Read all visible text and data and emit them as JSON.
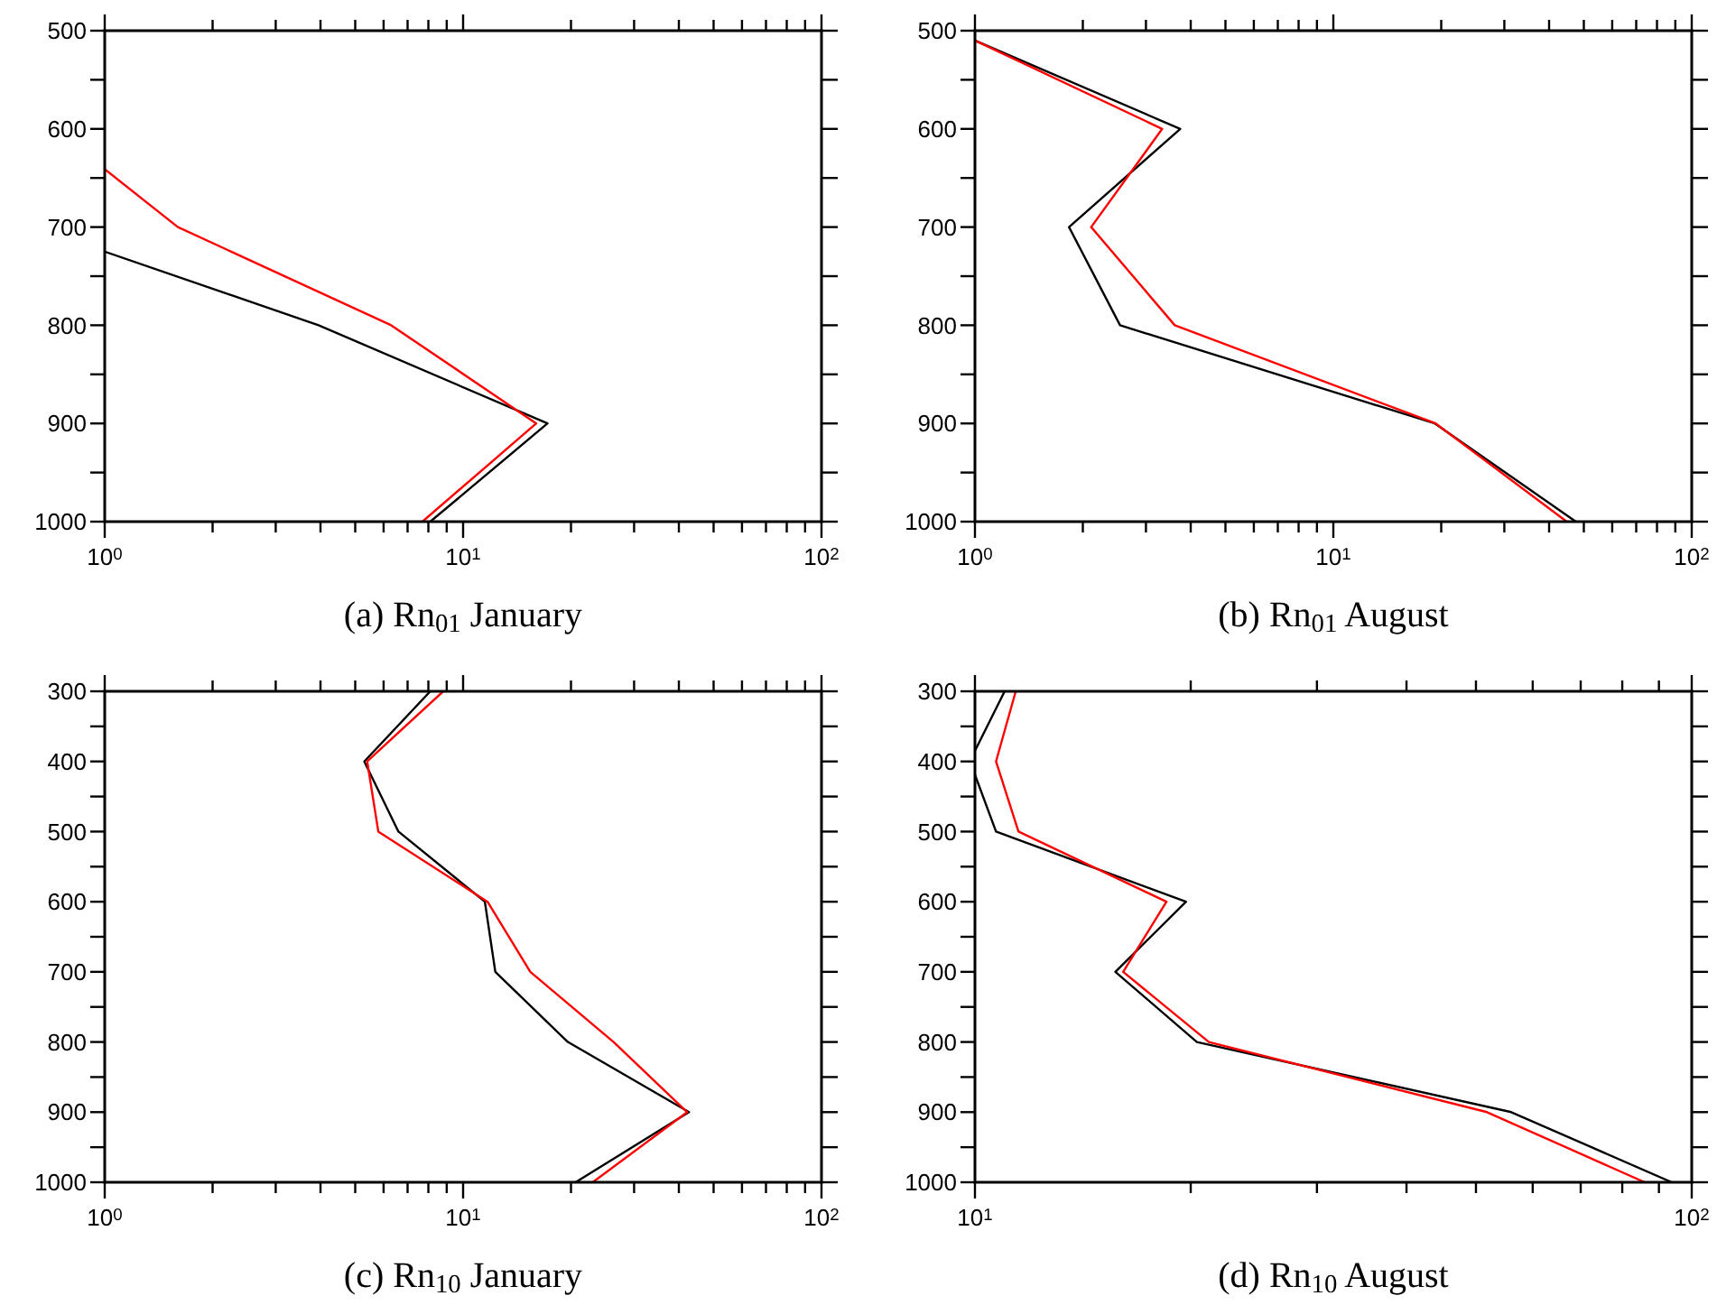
{
  "chart_data": [
    {
      "type": "line",
      "title": "(a) Rn$_{01}$ January",
      "log": "x",
      "grid": false,
      "xlim": [
        1,
        100
      ],
      "ylim": [
        1000,
        500
      ],
      "xticks": [
        {
          "value": 1,
          "label": "10$^{0}$"
        },
        {
          "value": 2,
          "label": null
        },
        {
          "value": 3,
          "label": null
        },
        {
          "value": 4,
          "label": null
        },
        {
          "value": 5,
          "label": null
        },
        {
          "value": 6,
          "label": null
        },
        {
          "value": 7,
          "label": null
        },
        {
          "value": 8,
          "label": null
        },
        {
          "value": 9,
          "label": null
        },
        {
          "value": 10,
          "label": "10$^{1}$"
        },
        {
          "value": 20,
          "label": null
        },
        {
          "value": 30,
          "label": null
        },
        {
          "value": 40,
          "label": null
        },
        {
          "value": 50,
          "label": null
        },
        {
          "value": 60,
          "label": null
        },
        {
          "value": 70,
          "label": null
        },
        {
          "value": 80,
          "label": null
        },
        {
          "value": 90,
          "label": null
        },
        {
          "value": 100,
          "label": "10$^{2}$"
        }
      ],
      "yticks": [
        500,
        {
          "value": 550,
          "label": null
        },
        600,
        {
          "value": 650,
          "label": null
        },
        700,
        {
          "value": 750,
          "label": null
        },
        800,
        {
          "value": 850,
          "label": null
        },
        900,
        {
          "value": 950,
          "label": null
        },
        1000
      ],
      "series": [
        {
          "color": "#000000",
          "x": [
            1,
            3.95,
            17.2,
            8.1
          ],
          "values": [
            725,
            800,
            900,
            1000
          ]
        },
        {
          "color": "#ff0000",
          "x": [
            1,
            1.6,
            6.3,
            16,
            7.7
          ],
          "values": [
            641,
            700,
            800,
            900,
            1000
          ]
        }
      ]
    },
    {
      "type": "line",
      "title": "(b) Rn$_{01}$ August",
      "log": "x",
      "grid": false,
      "xlim": [
        1,
        100
      ],
      "ylim": [
        1000,
        500
      ],
      "xticks": [
        {
          "value": 1,
          "label": "10$^{0}$"
        },
        {
          "value": 2,
          "label": null
        },
        {
          "value": 3,
          "label": null
        },
        {
          "value": 4,
          "label": null
        },
        {
          "value": 5,
          "label": null
        },
        {
          "value": 6,
          "label": null
        },
        {
          "value": 7,
          "label": null
        },
        {
          "value": 8,
          "label": null
        },
        {
          "value": 9,
          "label": null
        },
        {
          "value": 10,
          "label": "10$^{1}$"
        },
        {
          "value": 20,
          "label": null
        },
        {
          "value": 30,
          "label": null
        },
        {
          "value": 40,
          "label": null
        },
        {
          "value": 50,
          "label": null
        },
        {
          "value": 60,
          "label": null
        },
        {
          "value": 70,
          "label": null
        },
        {
          "value": 80,
          "label": null
        },
        {
          "value": 90,
          "label": null
        },
        {
          "value": 100,
          "label": "10$^{2}$"
        }
      ],
      "yticks": [
        500,
        {
          "value": 550,
          "label": null
        },
        600,
        {
          "value": 650,
          "label": null
        },
        700,
        {
          "value": 750,
          "label": null
        },
        800,
        {
          "value": 850,
          "label": null
        },
        900,
        {
          "value": 950,
          "label": null
        },
        1000
      ],
      "series": [
        {
          "color": "#000000",
          "x": [
            1,
            3.74,
            1.83,
            2.54,
            19.2,
            47.5
          ],
          "values": [
            510,
            600,
            700,
            800,
            900,
            1000
          ]
        },
        {
          "color": "#ff0000",
          "x": [
            1,
            3.33,
            2.11,
            3.61,
            19.3,
            44.8
          ],
          "values": [
            510,
            600,
            700,
            800,
            900,
            1000
          ]
        }
      ]
    },
    {
      "type": "line",
      "title": "(c) Rn$_{10}$ January",
      "log": "x",
      "grid": false,
      "xlim": [
        1,
        100
      ],
      "ylim": [
        1000,
        300
      ],
      "xticks": [
        {
          "value": 1,
          "label": "10$^{0}$"
        },
        {
          "value": 2,
          "label": null
        },
        {
          "value": 3,
          "label": null
        },
        {
          "value": 4,
          "label": null
        },
        {
          "value": 5,
          "label": null
        },
        {
          "value": 6,
          "label": null
        },
        {
          "value": 7,
          "label": null
        },
        {
          "value": 8,
          "label": null
        },
        {
          "value": 9,
          "label": null
        },
        {
          "value": 10,
          "label": "10$^{1}$"
        },
        {
          "value": 20,
          "label": null
        },
        {
          "value": 30,
          "label": null
        },
        {
          "value": 40,
          "label": null
        },
        {
          "value": 50,
          "label": null
        },
        {
          "value": 60,
          "label": null
        },
        {
          "value": 70,
          "label": null
        },
        {
          "value": 80,
          "label": null
        },
        {
          "value": 90,
          "label": null
        },
        {
          "value": 100,
          "label": "10$^{2}$"
        }
      ],
      "yticks": [
        300,
        {
          "value": 350,
          "label": null
        },
        400,
        {
          "value": 450,
          "label": null
        },
        500,
        {
          "value": 550,
          "label": null
        },
        600,
        {
          "value": 650,
          "label": null
        },
        700,
        {
          "value": 750,
          "label": null
        },
        800,
        {
          "value": 850,
          "label": null
        },
        900,
        {
          "value": 950,
          "label": null
        },
        1000
      ],
      "series": [
        {
          "color": "#000000",
          "x": [
            8.1,
            5.3,
            6.6,
            11.5,
            12.3,
            19.6,
            42.7,
            20.6
          ],
          "values": [
            300,
            400,
            500,
            600,
            700,
            800,
            900,
            1000
          ]
        },
        {
          "color": "#ff0000",
          "x": [
            8.8,
            5.4,
            5.8,
            11.7,
            15.4,
            26.3,
            42.2,
            23.0
          ],
          "values": [
            300,
            400,
            500,
            600,
            700,
            800,
            900,
            1000
          ]
        }
      ]
    },
    {
      "type": "line",
      "title": "(d) Rn$_{10}$ August",
      "log": "x",
      "grid": false,
      "xlim": [
        10,
        100
      ],
      "ylim": [
        1000,
        300
      ],
      "xticks": [
        {
          "value": 10,
          "label": "10$^{1}$"
        },
        {
          "value": 20,
          "label": null
        },
        {
          "value": 30,
          "label": null
        },
        {
          "value": 40,
          "label": null
        },
        {
          "value": 50,
          "label": null
        },
        {
          "value": 60,
          "label": null
        },
        {
          "value": 70,
          "label": null
        },
        {
          "value": 80,
          "label": null
        },
        {
          "value": 90,
          "label": null
        },
        {
          "value": 100,
          "label": "10$^{2}$"
        }
      ],
      "yticks": [
        300,
        {
          "value": 350,
          "label": null
        },
        400,
        {
          "value": 450,
          "label": null
        },
        500,
        {
          "value": 550,
          "label": null
        },
        600,
        {
          "value": 650,
          "label": null
        },
        700,
        {
          "value": 750,
          "label": null
        },
        800,
        {
          "value": 850,
          "label": null
        },
        900,
        {
          "value": 950,
          "label": null
        },
        1000
      ],
      "series": [
        {
          "color": "#000000",
          "x": [
            11.0,
            10,
            null,
            10,
            10.7,
            19.7,
            15.7,
            20.4,
            56,
            93.8
          ],
          "values": [
            300,
            385,
            null,
            419,
            500,
            600,
            700,
            800,
            900,
            1000
          ]
        },
        {
          "color": "#ff0000",
          "x": [
            11.4,
            10.7,
            11.5,
            18.5,
            16.1,
            21.2,
            51.8,
            86.0
          ],
          "values": [
            300,
            400,
            500,
            600,
            700,
            800,
            900,
            1000
          ]
        }
      ]
    }
  ]
}
